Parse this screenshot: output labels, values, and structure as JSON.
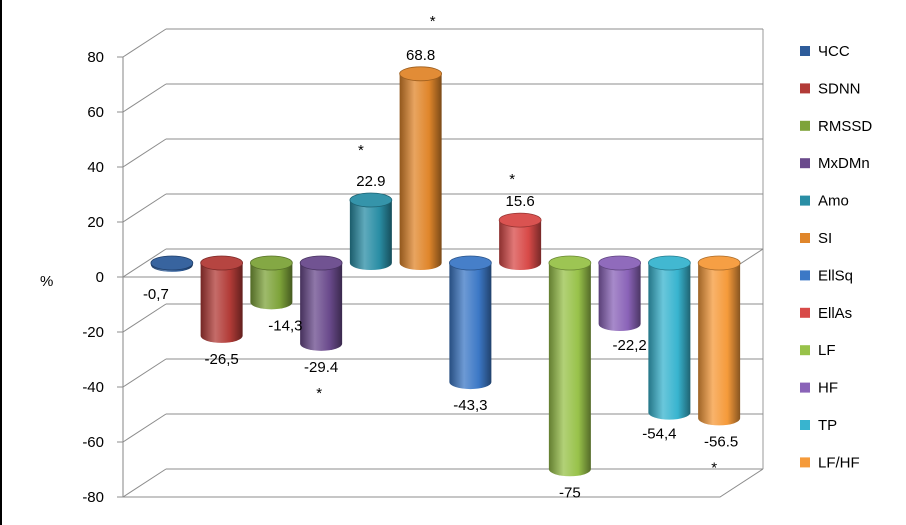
{
  "chart_data": {
    "type": "bar",
    "ylabel": "%",
    "ylim": [
      -80,
      80
    ],
    "yticks": [
      80,
      60,
      40,
      20,
      0,
      -20,
      -40,
      -60,
      -80
    ],
    "grid": true,
    "legend_position": "right",
    "series": [
      {
        "name": "ЧСС",
        "value": -0.7,
        "label": "-0,7",
        "color": "#2e5c9a",
        "star": ""
      },
      {
        "name": "SDNN",
        "value": -26.5,
        "label": "-26,5",
        "color": "#b23b37",
        "star": ""
      },
      {
        "name": "RMSSD",
        "value": -14.3,
        "label": "-14,3",
        "color": "#7ea33a",
        "star": ""
      },
      {
        "name": "MxDMn",
        "value": -29.4,
        "label": "-29.4",
        "color": "#6a4a8c",
        "star": "*"
      },
      {
        "name": "Amo",
        "value": 22.9,
        "label": "22.9",
        "color": "#2a8ea5",
        "star": "*"
      },
      {
        "name": "SI",
        "value": 68.8,
        "label": "68.8",
        "color": "#e0862b",
        "star": "*"
      },
      {
        "name": "EllSq",
        "value": -43.3,
        "label": "-43,3",
        "color": "#3c78c6",
        "star": ""
      },
      {
        "name": "EllAs",
        "value": 15.6,
        "label": "15.6",
        "color": "#d84a48",
        "star": "*"
      },
      {
        "name": "LF",
        "value": -75,
        "label": "-75",
        "color": "#98c24a",
        "star": ""
      },
      {
        "name": "HF",
        "value": -22.2,
        "label": "-22,2",
        "color": "#8a63b8",
        "star": ""
      },
      {
        "name": "TP",
        "value": -54.4,
        "label": "-54,4",
        "color": "#38b4cf",
        "star": ""
      },
      {
        "name": "LF/HF",
        "value": -56.5,
        "label": "-56.5",
        "color": "#f59a3a",
        "star": "*"
      }
    ]
  }
}
